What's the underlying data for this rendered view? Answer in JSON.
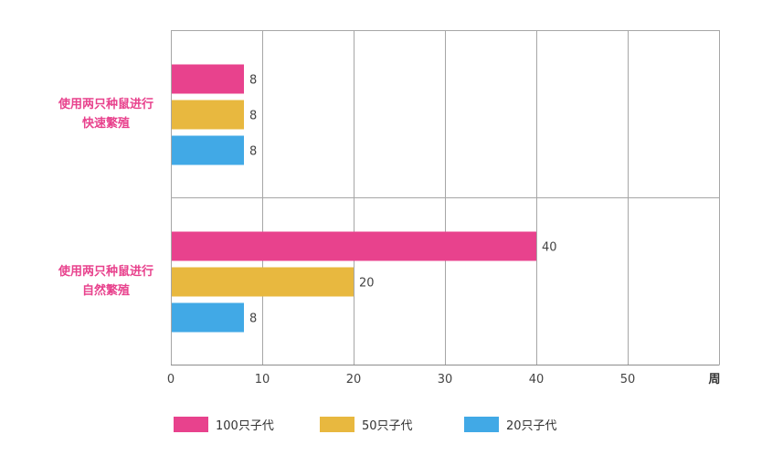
{
  "chart_data": {
    "type": "bar",
    "orientation": "horizontal",
    "categories": [
      [
        "使用两只种鼠进行",
        "快速繁殖"
      ],
      [
        "使用两只种鼠进行",
        "自然繁殖"
      ]
    ],
    "series": [
      {
        "name": "100只子代",
        "color": "#e8428d",
        "values": [
          8,
          40
        ]
      },
      {
        "name": "50只子代",
        "color": "#e8b83f",
        "values": [
          8,
          20
        ]
      },
      {
        "name": "20只子代",
        "color": "#41a9e6",
        "values": [
          8,
          8
        ]
      }
    ],
    "xlim": [
      0,
      60
    ],
    "xticks": [
      0,
      10,
      20,
      30,
      40,
      50
    ],
    "xunit": "周",
    "grid": true,
    "legend_position": "bottom"
  }
}
